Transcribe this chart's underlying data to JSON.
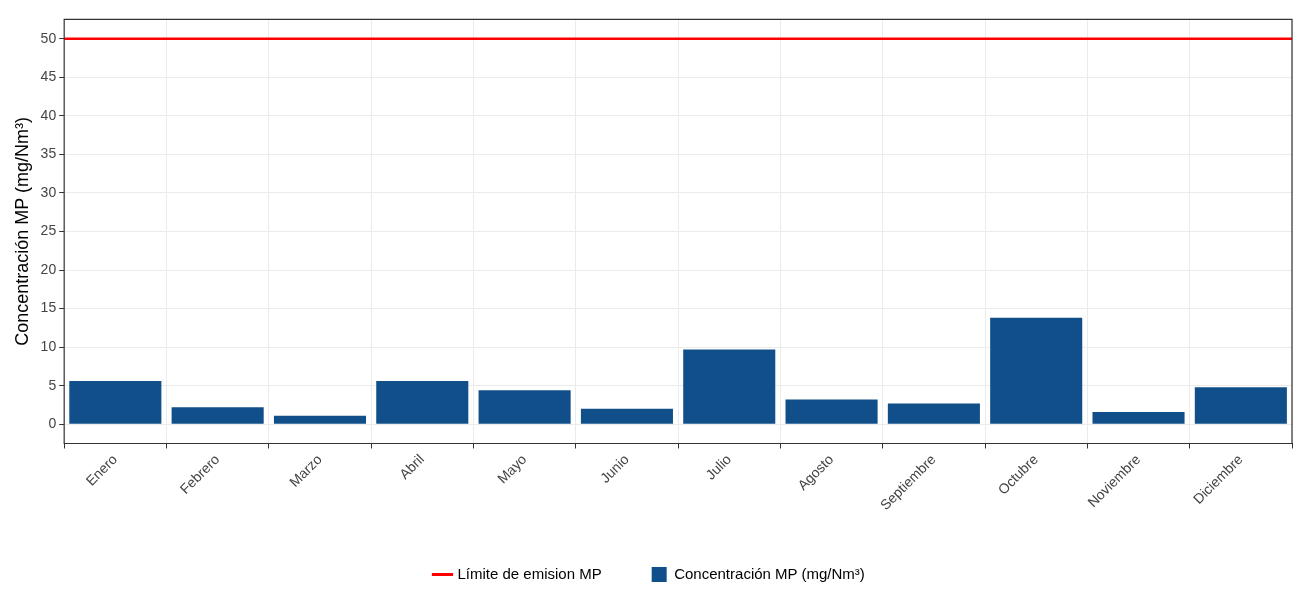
{
  "chart_data": {
    "type": "bar",
    "ylabel": "Concentración MP (mg/Nm³)",
    "categories": [
      "Enero",
      "Febrero",
      "Marzo",
      "Abril",
      "Mayo",
      "Junio",
      "Julio",
      "Agosto",
      "Septiembre",
      "Octubre",
      "Noviembre",
      "Diciembre"
    ],
    "series": [
      {
        "name": "Concentración MP (mg/Nm³)",
        "color": "#114f8b",
        "values": [
          5.6,
          2.2,
          1.1,
          5.6,
          4.4,
          2.0,
          9.7,
          3.2,
          2.7,
          13.8,
          1.6,
          4.8
        ]
      }
    ],
    "ylim": [
      -2.5,
      52.5
    ],
    "yticks": [
      0,
      5,
      10,
      15,
      20,
      25,
      30,
      35,
      40,
      45,
      50
    ],
    "ref_lines": [
      {
        "axis": "y",
        "value": 50,
        "label": "Límite de emision MP",
        "color": "#ff0000"
      }
    ],
    "grid": true,
    "legend": "bottom"
  }
}
